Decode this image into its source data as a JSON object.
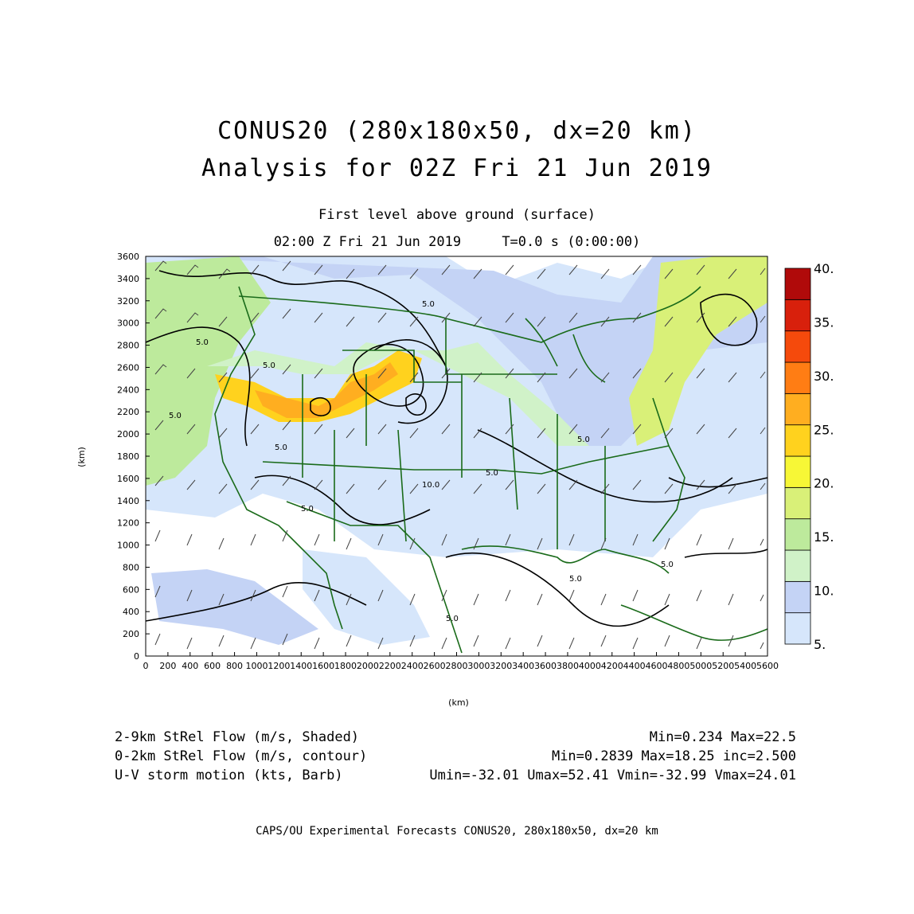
{
  "header": {
    "title_line1": "CONUS20 (280x180x50, dx=20 km)",
    "title_line2": "Analysis for 02Z Fri 21 Jun 2019",
    "level": "First level above ground (surface)",
    "valid_time": "02:00 Z Fri 21 Jun 2019",
    "forecast_time": "T=0.0 s (0:00:00)"
  },
  "axes": {
    "x_label": "(km)",
    "y_label": "(km)",
    "x_ticks": [
      "0",
      "200",
      "400",
      "600",
      "800",
      "1000",
      "1200",
      "1400",
      "1600",
      "1800",
      "2000",
      "2200",
      "2400",
      "2600",
      "2800",
      "3000",
      "3200",
      "3400",
      "3600",
      "3800",
      "4000",
      "4200",
      "4400",
      "4600",
      "4800",
      "5000",
      "5200",
      "5400",
      "5600"
    ],
    "y_ticks": [
      "0",
      "200",
      "400",
      "600",
      "800",
      "1000",
      "1200",
      "1400",
      "1600",
      "1800",
      "2000",
      "2200",
      "2400",
      "2600",
      "2800",
      "3000",
      "3200",
      "3400",
      "3600"
    ],
    "x_range": [
      0,
      5600
    ],
    "y_range": [
      0,
      3600
    ]
  },
  "colorbar": {
    "labels": [
      "5.",
      "10.",
      "15.",
      "20.",
      "25.",
      "30.",
      "35.",
      "40."
    ],
    "colors": [
      "#d6e6fb",
      "#c4d3f5",
      "#d0f2c8",
      "#bdea9c",
      "#d9f078",
      "#f7f736",
      "#ffd21e",
      "#ffae20",
      "#ff7d14",
      "#f54a0c",
      "#d8200c",
      "#b00a0a"
    ]
  },
  "contour_labels": [
    "5.0",
    "5.0",
    "5.0",
    "5.0",
    "5.0",
    "5.0",
    "10.0",
    "5.0",
    "5.0",
    "5.0",
    "5.0",
    "5.0"
  ],
  "stats": {
    "line1_left": "2-9km StRel Flow (m/s, Shaded)",
    "line1_right": "Min=0.234 Max=22.5",
    "line2_left": "0-2km StRel Flow (m/s, contour)",
    "line2_right": "Min=0.2839 Max=18.25 inc=2.500",
    "line3_left": "U-V storm motion (kts, Barb)",
    "line3_right": "Umin=-32.01 Umax=52.41 Vmin=-32.99 Vmax=24.01"
  },
  "footer": "CAPS/OU Experimental Forecasts  CONUS20, 280x180x50, dx=20 km",
  "colors": {
    "map_border": "#1a6b1a",
    "contour": "#000000",
    "barb": "#444444"
  }
}
